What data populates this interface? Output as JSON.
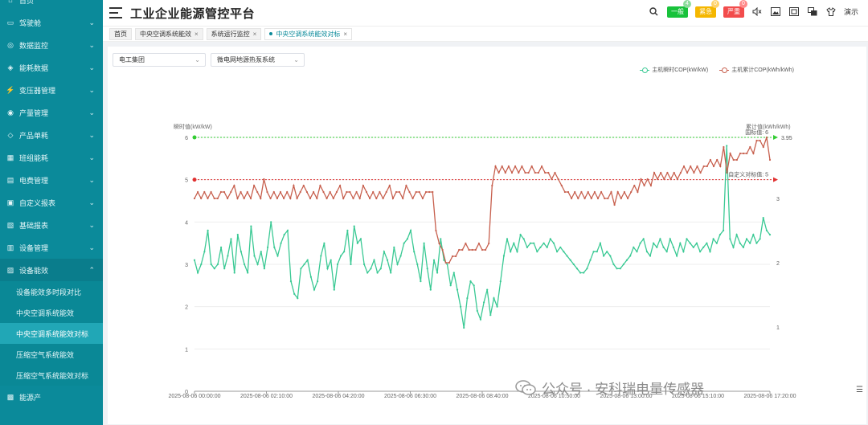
{
  "header": {
    "title": "工业企业能源管控平台",
    "badges": [
      {
        "label": "一般",
        "count": "4"
      },
      {
        "label": "紧急",
        "count": "0"
      },
      {
        "label": "严重",
        "count": "0"
      }
    ],
    "demo_label": "演示"
  },
  "sidebar": {
    "items": [
      {
        "label": "首页"
      },
      {
        "label": "驾驶舱"
      },
      {
        "label": "数据监控"
      },
      {
        "label": "能耗数据"
      },
      {
        "label": "变压器管理"
      },
      {
        "label": "产量管理"
      },
      {
        "label": "产品单耗"
      },
      {
        "label": "班组能耗"
      },
      {
        "label": "电费管理"
      },
      {
        "label": "自定义报表"
      },
      {
        "label": "基础报表"
      },
      {
        "label": "设备管理"
      },
      {
        "label": "设备能效"
      }
    ],
    "sub_items": [
      {
        "label": "设备能效多时段对比"
      },
      {
        "label": "中央空调系统能效"
      },
      {
        "label": "中央空调系统能效对标"
      },
      {
        "label": "压缩空气系统能效"
      },
      {
        "label": "压缩空气系统能效对标"
      }
    ],
    "last_item": "能源产"
  },
  "tabs": [
    {
      "label": "首页"
    },
    {
      "label": "中央空调系统能效"
    },
    {
      "label": "系统运行监控"
    },
    {
      "label": "中央空调系统能效对标"
    }
  ],
  "filters": {
    "group": "电工集团",
    "system": "微电网地源热泵系统"
  },
  "watermark": "公众号 · 安科瑞电量传感器",
  "colors": {
    "sidebar": "#0b8a9a",
    "series_instant": "#3ac994",
    "series_cumulative": "#c75f4d",
    "national_line": "#33cc33",
    "custom_line": "#e03030"
  },
  "chart_data": {
    "type": "line",
    "left_axis_label": "瞬时值(kW/kW)",
    "right_axis_label": "累计值(kWh/kWh)",
    "ylim_left": [
      0,
      6
    ],
    "yticks_left": [
      "0",
      "1",
      "2",
      "3",
      "4",
      "5",
      "6"
    ],
    "ylim_right": [
      0,
      3.95
    ],
    "yticks_right": [
      "1",
      "2",
      "3"
    ],
    "x_tick_labels": [
      "2025-08-06 00:00:00",
      "2025-08-06 02:10:00",
      "2025-08-06 04:20:00",
      "2025-08-06 06:30:00",
      "2025-08-06 08:40:00",
      "2025-08-06 10:50:00",
      "2025-08-06 13:00:00",
      "2025-08-06 15:10:00",
      "2025-08-06 17:20:00"
    ],
    "legend": [
      "主机瞬时COP(kW/kW)",
      "主机累计COP(kWh/kWh)"
    ],
    "reference_lines": [
      {
        "label": "国标值: 6",
        "value": 6
      },
      {
        "label": "自定义对标值: 5",
        "value": 5
      }
    ],
    "right_end_label": "3.95",
    "series": [
      {
        "name": "主机瞬时COP(kW/kW)",
        "axis": "left",
        "values": [
          3.1,
          2.8,
          3.0,
          3.3,
          3.8,
          3.0,
          2.9,
          3.0,
          3.4,
          2.9,
          3.2,
          3.6,
          2.8,
          3.7,
          3.3,
          3.0,
          2.8,
          3.9,
          3.2,
          3.0,
          3.3,
          2.9,
          3.4,
          4.0,
          3.4,
          3.2,
          3.5,
          3.7,
          3.8,
          2.6,
          2.3,
          2.2,
          2.9,
          3.0,
          3.1,
          2.7,
          2.4,
          2.6,
          3.2,
          3.5,
          2.9,
          3.1,
          2.4,
          3.0,
          3.2,
          3.3,
          3.8,
          3.0,
          3.9,
          3.5,
          3.6,
          3.0,
          2.8,
          2.9,
          3.1,
          2.8,
          2.9,
          3.3,
          3.1,
          2.8,
          3.4,
          3.0,
          3.2,
          3.5,
          3.6,
          3.8,
          3.3,
          3.0,
          2.6,
          3.5,
          2.9,
          2.4,
          3.1,
          2.8,
          3.6,
          3.1,
          3.0,
          2.5,
          2.8,
          2.4,
          2.0,
          1.5,
          2.2,
          2.6,
          2.5,
          1.9,
          1.7,
          2.1,
          2.4,
          1.8,
          2.2,
          2.0,
          2.6,
          3.2,
          3.6,
          3.3,
          3.5,
          3.3,
          3.7,
          3.6,
          3.4,
          3.5,
          3.5,
          3.3,
          3.4,
          3.5,
          3.4,
          3.6,
          3.5,
          3.3,
          3.4,
          3.3,
          3.2,
          3.1,
          3.0,
          2.9,
          2.8,
          2.8,
          2.9,
          3.1,
          3.3,
          3.3,
          3.5,
          3.2,
          3.3,
          3.2,
          3.0,
          2.9,
          2.9,
          3.0,
          3.1,
          3.2,
          3.4,
          3.3,
          3.5,
          3.6,
          3.3,
          3.2,
          3.5,
          3.4,
          3.6,
          3.4,
          3.3,
          3.6,
          3.4,
          3.2,
          3.5,
          3.3,
          3.6,
          3.5,
          3.4,
          3.5,
          3.3,
          3.4,
          3.5,
          3.3,
          3.6,
          3.5,
          3.7,
          3.8,
          5.8,
          3.6,
          3.4,
          3.7,
          3.5,
          3.4,
          3.6,
          3.5,
          3.7,
          3.5,
          3.6,
          4.1,
          3.8,
          3.7
        ]
      },
      {
        "name": "主机累计COP(kWh/kWh)",
        "axis": "right",
        "values": [
          3.0,
          3.1,
          3.0,
          3.1,
          3.0,
          3.1,
          3.0,
          3.0,
          3.1,
          3.1,
          3.0,
          3.1,
          3.2,
          3.0,
          3.1,
          3.0,
          3.1,
          3.0,
          3.2,
          3.1,
          3.0,
          3.3,
          3.1,
          3.0,
          3.1,
          3.0,
          3.1,
          3.0,
          3.1,
          3.0,
          3.2,
          3.0,
          3.1,
          3.2,
          3.1,
          3.0,
          3.1,
          3.0,
          3.2,
          3.1,
          3.0,
          3.1,
          3.0,
          3.1,
          3.2,
          3.0,
          3.1,
          3.1,
          3.0,
          3.1,
          3.0,
          3.2,
          3.1,
          3.0,
          3.1,
          3.0,
          3.1,
          3.0,
          3.1,
          3.2,
          3.0,
          3.1,
          3.1,
          3.0,
          3.2,
          3.1,
          3.0,
          3.1,
          3.1,
          3.0,
          3.1,
          3.1,
          3.1,
          2.5,
          2.3,
          2.2,
          2.0,
          2.0,
          2.1,
          2.1,
          2.2,
          2.2,
          2.3,
          2.2,
          2.2,
          2.2,
          2.3,
          2.2,
          2.2,
          2.3,
          3.2,
          3.5,
          3.4,
          3.5,
          3.4,
          3.5,
          3.4,
          3.5,
          3.4,
          3.5,
          3.4,
          3.4,
          3.5,
          3.4,
          3.4,
          3.5,
          3.4,
          3.4,
          3.3,
          3.4,
          3.3,
          3.2,
          3.1,
          3.1,
          3.0,
          3.1,
          3.0,
          3.1,
          3.0,
          3.1,
          3.0,
          3.1,
          3.0,
          3.1,
          3.0,
          3.0,
          3.1,
          2.9,
          3.1,
          3.0,
          3.1,
          3.0,
          3.1,
          3.2,
          3.1,
          3.3,
          3.2,
          3.3,
          3.2,
          3.4,
          3.3,
          3.4,
          3.3,
          3.4,
          3.3,
          3.4,
          3.3,
          3.4,
          3.5,
          3.4,
          3.5,
          3.4,
          3.5,
          3.4,
          3.5,
          3.5,
          3.6,
          3.5,
          3.6,
          3.5,
          3.8,
          3.4,
          3.7,
          3.6,
          3.6,
          3.7,
          3.7,
          3.7,
          3.8,
          3.7,
          3.9,
          3.9,
          3.8,
          3.95,
          3.6
        ]
      }
    ]
  }
}
